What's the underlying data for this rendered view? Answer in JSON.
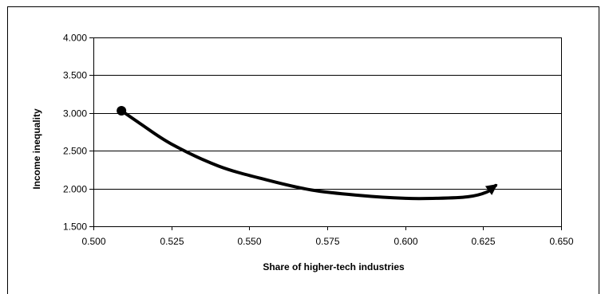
{
  "chart_data": {
    "type": "line",
    "title": "",
    "xlabel": "Share of higher-tech industries",
    "ylabel": "Income inequality",
    "xlim": [
      0.5,
      0.65
    ],
    "ylim": [
      1.5,
      4.0
    ],
    "x_ticks": [
      "0.500",
      "0.525",
      "0.550",
      "0.575",
      "0.600",
      "0.625",
      "0.650"
    ],
    "y_ticks": [
      "1.500",
      "2.000",
      "2.500",
      "3.000",
      "3.500",
      "4.000"
    ],
    "grid": "horizontal",
    "legend": "none",
    "line_color": "#000000",
    "start_marker": "circle",
    "end_marker": "arrow",
    "series": [
      {
        "x": [
          0.509,
          0.515,
          0.525,
          0.54,
          0.555,
          0.57,
          0.585,
          0.6,
          0.61,
          0.62,
          0.626,
          0.629
        ],
        "y": [
          3.03,
          2.86,
          2.59,
          2.3,
          2.12,
          1.98,
          1.91,
          1.87,
          1.87,
          1.89,
          1.95,
          2.04
        ]
      }
    ]
  }
}
